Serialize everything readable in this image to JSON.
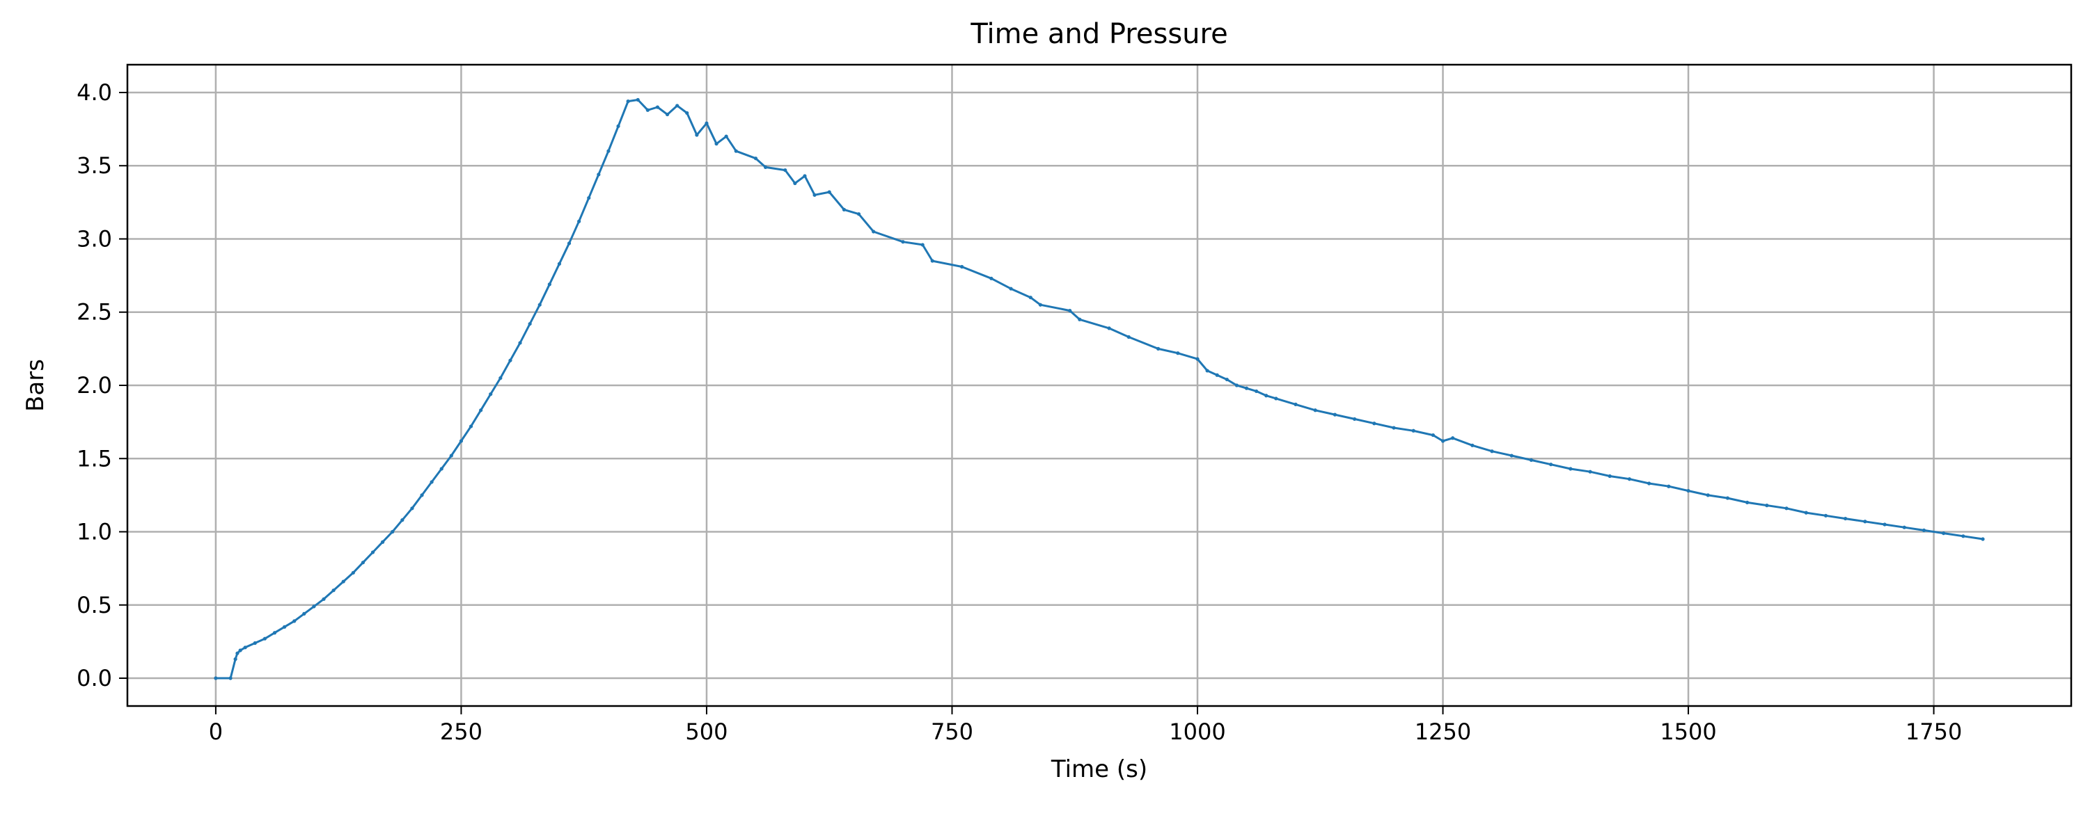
{
  "chart_data": {
    "type": "scatter",
    "title": "Time and Pressure",
    "xlabel": "Time (s)",
    "ylabel": "Bars",
    "xlim": [
      -90,
      1890
    ],
    "ylim": [
      -0.19,
      4.19
    ],
    "grid": true,
    "x_ticks": [
      0,
      250,
      500,
      750,
      1000,
      1250,
      1500,
      1750
    ],
    "x_tick_labels": [
      "0",
      "250",
      "500",
      "750",
      "1000",
      "1250",
      "1500",
      "1750"
    ],
    "y_ticks": [
      0.0,
      0.5,
      1.0,
      1.5,
      2.0,
      2.5,
      3.0,
      3.5,
      4.0
    ],
    "y_tick_labels": [
      "0.0",
      "0.5",
      "1.0",
      "1.5",
      "2.0",
      "2.5",
      "3.0",
      "3.5",
      "4.0"
    ],
    "series": [
      {
        "color": "#1f77b4",
        "x": [
          0,
          15,
          20,
          22,
          25,
          30,
          40,
          50,
          60,
          70,
          80,
          90,
          100,
          110,
          120,
          130,
          140,
          150,
          160,
          170,
          180,
          190,
          200,
          210,
          220,
          230,
          240,
          250,
          260,
          270,
          280,
          290,
          300,
          310,
          320,
          330,
          340,
          350,
          360,
          370,
          380,
          390,
          400,
          410,
          420,
          430,
          440,
          450,
          460,
          470,
          480,
          490,
          500,
          510,
          520,
          530,
          550,
          560,
          580,
          590,
          600,
          610,
          625,
          640,
          655,
          670,
          700,
          720,
          730,
          760,
          790,
          810,
          830,
          840,
          870,
          880,
          910,
          930,
          960,
          980,
          1000,
          1010,
          1020,
          1030,
          1040,
          1050,
          1060,
          1070,
          1080,
          1100,
          1120,
          1140,
          1160,
          1180,
          1200,
          1220,
          1240,
          1250,
          1260,
          1280,
          1300,
          1320,
          1340,
          1360,
          1380,
          1400,
          1420,
          1440,
          1460,
          1480,
          1500,
          1520,
          1540,
          1560,
          1580,
          1600,
          1620,
          1640,
          1660,
          1680,
          1700,
          1720,
          1740,
          1760,
          1780,
          1800
        ],
        "y": [
          0.0,
          0.0,
          0.13,
          0.17,
          0.19,
          0.21,
          0.24,
          0.27,
          0.31,
          0.35,
          0.39,
          0.44,
          0.49,
          0.54,
          0.6,
          0.66,
          0.72,
          0.79,
          0.86,
          0.93,
          1.0,
          1.08,
          1.16,
          1.25,
          1.34,
          1.43,
          1.52,
          1.62,
          1.72,
          1.83,
          1.94,
          2.05,
          2.17,
          2.29,
          2.42,
          2.55,
          2.69,
          2.83,
          2.97,
          3.12,
          3.28,
          3.44,
          3.6,
          3.77,
          3.94,
          3.95,
          3.88,
          3.9,
          3.85,
          3.91,
          3.86,
          3.71,
          3.79,
          3.65,
          3.7,
          3.6,
          3.55,
          3.49,
          3.47,
          3.38,
          3.43,
          3.3,
          3.32,
          3.2,
          3.17,
          3.05,
          2.98,
          2.96,
          2.85,
          2.81,
          2.73,
          2.66,
          2.6,
          2.55,
          2.51,
          2.45,
          2.39,
          2.33,
          2.25,
          2.22,
          2.18,
          2.1,
          2.07,
          2.04,
          2.0,
          1.98,
          1.96,
          1.93,
          1.91,
          1.87,
          1.83,
          1.8,
          1.77,
          1.74,
          1.71,
          1.69,
          1.66,
          1.62,
          1.64,
          1.59,
          1.55,
          1.52,
          1.49,
          1.46,
          1.43,
          1.41,
          1.38,
          1.36,
          1.33,
          1.31,
          1.28,
          1.25,
          1.23,
          1.2,
          1.18,
          1.16,
          1.13,
          1.11,
          1.09,
          1.07,
          1.05,
          1.03,
          1.01,
          0.99,
          0.97,
          0.95
        ]
      }
    ]
  }
}
